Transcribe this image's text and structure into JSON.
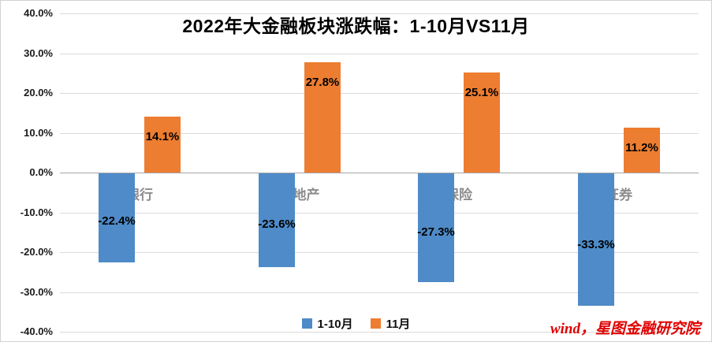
{
  "chart_data": {
    "type": "bar",
    "title": "2022年大金融板块涨跌幅：1-10月VS11月",
    "categories": [
      "银行",
      "房地产",
      "保险",
      "证券"
    ],
    "series": [
      {
        "name": "1-10月",
        "color": "#4e8bc8",
        "values": [
          -22.4,
          -23.6,
          -27.3,
          -33.3
        ],
        "labels": [
          "-22.4%",
          "-23.6%",
          "-27.3%",
          "-33.3%"
        ]
      },
      {
        "name": "11月",
        "color": "#ed7d31",
        "values": [
          14.1,
          27.8,
          25.1,
          11.2
        ],
        "labels": [
          "14.1%",
          "27.8%",
          "25.1%",
          "11.2%"
        ]
      }
    ],
    "y_axis": {
      "min": -40,
      "max": 40,
      "step": 10,
      "tick_labels": [
        "40.0%",
        "30.0%",
        "20.0%",
        "10.0%",
        "0.0%",
        "-10.0%",
        "-20.0%",
        "-30.0%",
        "-40.0%"
      ]
    },
    "grid": true,
    "legend_position": "bottom",
    "source": "wind，星图金融研究院"
  }
}
